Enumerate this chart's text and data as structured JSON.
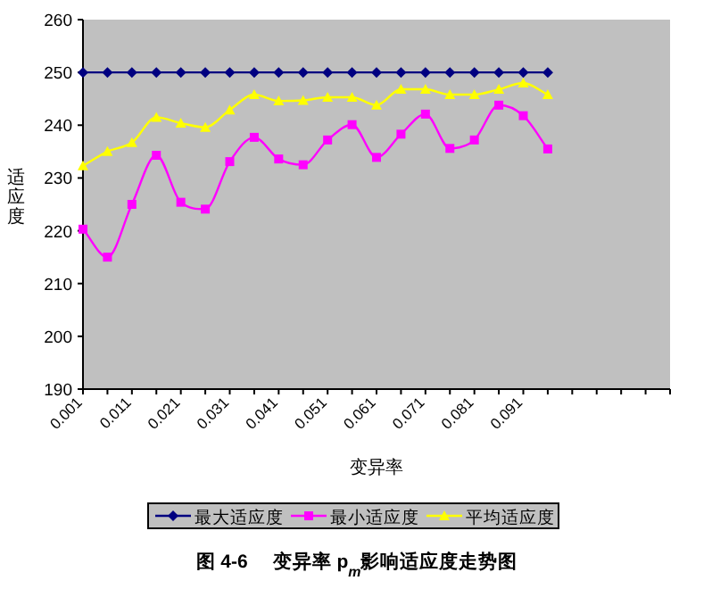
{
  "chart_data": {
    "type": "line",
    "xlabel": "变异率",
    "ylabel": "适应度",
    "annotations": [
      "图 4-6　 变异率 p$_{m}$影响适应度走势图"
    ],
    "categories": [
      "0.001",
      null,
      "0.011",
      null,
      "0.021",
      null,
      "0.031",
      null,
      "0.041",
      null,
      "0.051",
      null,
      "0.061",
      null,
      "0.071",
      null,
      "0.081",
      null,
      "0.091",
      null,
      null,
      null,
      null,
      null
    ],
    "ylim": [
      190,
      260
    ],
    "yticks": [
      190,
      200,
      210,
      220,
      230,
      240,
      250,
      260
    ],
    "grid": false,
    "legend": "bottom",
    "series": [
      {
        "name": "最大适应度",
        "color": "#000080",
        "marker": "diamond",
        "values": [
          250,
          250,
          250,
          250,
          250,
          250,
          250,
          250,
          250,
          250,
          250,
          250,
          250,
          250,
          250,
          250,
          250,
          250,
          250,
          250,
          null,
          null,
          null,
          null
        ]
      },
      {
        "name": "最小适应度",
        "color": "#ff00ff",
        "marker": "square",
        "values": [
          220.3,
          215.0,
          225.0,
          234.3,
          225.4,
          224.1,
          233.1,
          237.7,
          233.6,
          232.5,
          237.2,
          240.1,
          233.9,
          238.3,
          242.1,
          235.6,
          237.2,
          243.8,
          241.8,
          235.5,
          null,
          null,
          null,
          null
        ]
      },
      {
        "name": "平均适应度",
        "color": "#ffff00",
        "marker": "triangle",
        "values": [
          232.3,
          235.0,
          236.7,
          241.5,
          240.4,
          239.6,
          242.9,
          245.8,
          244.6,
          244.7,
          245.3,
          245.3,
          243.8,
          246.8,
          246.8,
          245.8,
          245.8,
          246.8,
          248.0,
          245.8,
          null,
          null,
          null,
          null
        ]
      }
    ]
  }
}
